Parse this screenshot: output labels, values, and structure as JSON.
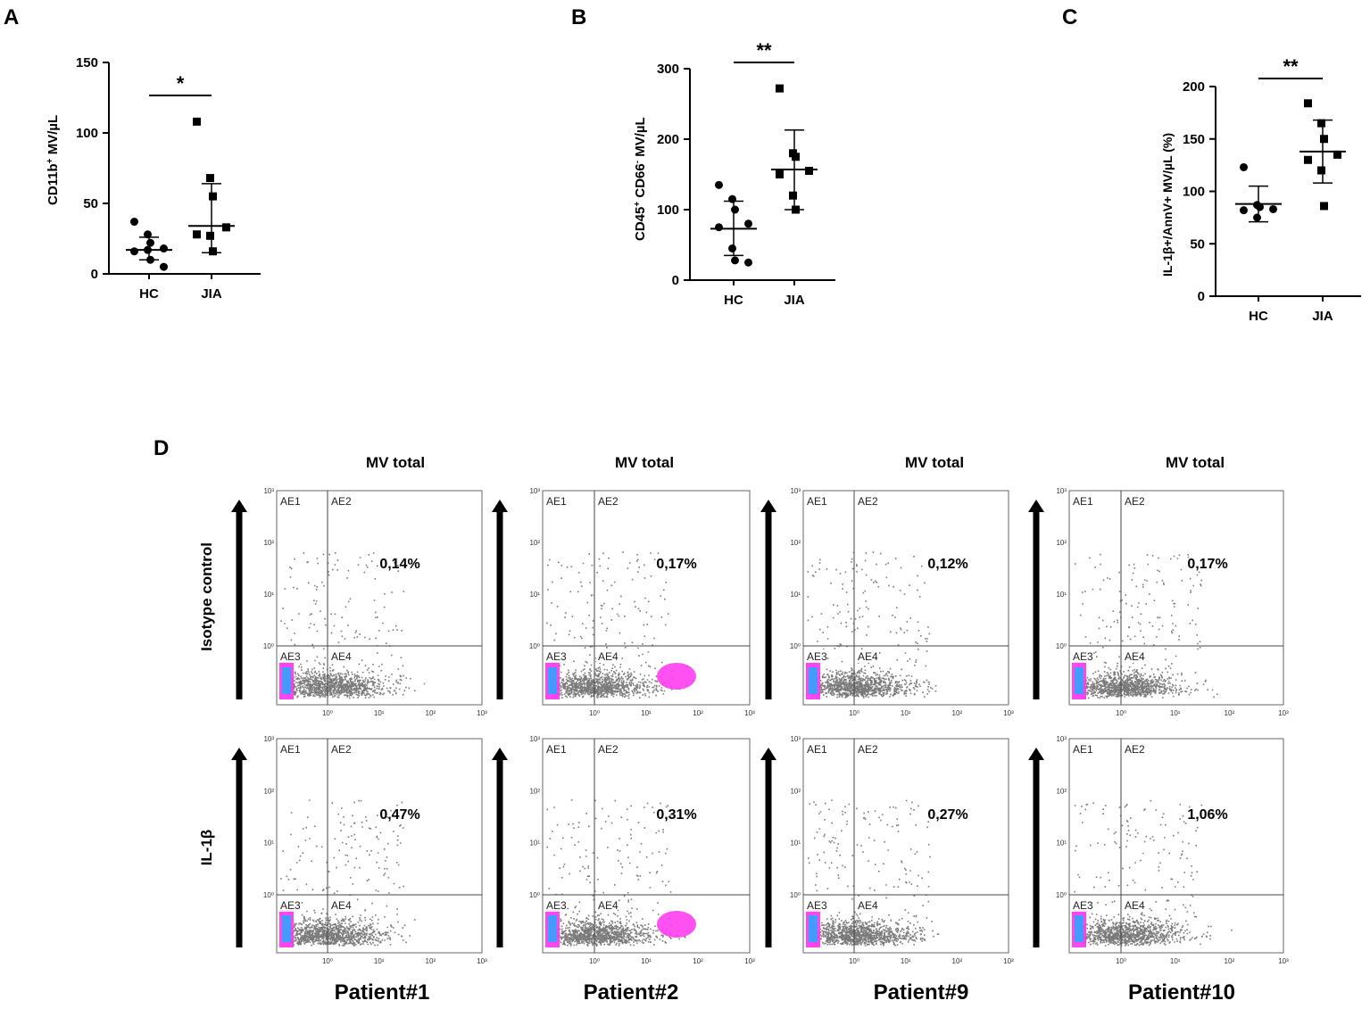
{
  "chart_data": [
    {
      "type": "scatter",
      "panel": "A",
      "ylabel_base": "CD11b",
      "ylabel_sup": "+",
      "ylabel_rest": " MV/µL",
      "categories": [
        "HC",
        "JIA"
      ],
      "ylim": [
        0,
        150
      ],
      "yticks": [
        0,
        50,
        100,
        150
      ],
      "significance": "*",
      "series": [
        {
          "name": "HC",
          "marker": "circle",
          "values": [
            37,
            28,
            22,
            18,
            16,
            17,
            10,
            5
          ],
          "mean": 17,
          "err_low": 10,
          "err_high": 26
        },
        {
          "name": "JIA",
          "marker": "square",
          "values": [
            108,
            68,
            55,
            33,
            28,
            27,
            16
          ],
          "mean": 34,
          "err_low": 15,
          "err_high": 64
        }
      ]
    },
    {
      "type": "scatter",
      "panel": "B",
      "ylabel_base": "CD45",
      "ylabel_sup": "+",
      "ylabel_mid": " CD66",
      "ylabel_sup2": "-",
      "ylabel_rest": " MV/µL",
      "categories": [
        "HC",
        "JIA"
      ],
      "ylim": [
        0,
        300
      ],
      "yticks": [
        0,
        100,
        200,
        300
      ],
      "significance": "**",
      "series": [
        {
          "name": "HC",
          "marker": "circle",
          "values": [
            135,
            115,
            100,
            80,
            75,
            45,
            28,
            25
          ],
          "mean": 73,
          "err_low": 35,
          "err_high": 112
        },
        {
          "name": "JIA",
          "marker": "square",
          "values": [
            272,
            180,
            175,
            155,
            150,
            120,
            100
          ],
          "mean": 157,
          "err_low": 100,
          "err_high": 213
        }
      ]
    },
    {
      "type": "scatter",
      "panel": "C",
      "ylabel": "IL-1β+/AnnV+ MV/µL (%)",
      "categories": [
        "HC",
        "JIA"
      ],
      "ylim": [
        0,
        200
      ],
      "yticks": [
        0,
        50,
        100,
        150,
        200
      ],
      "significance": "**",
      "series": [
        {
          "name": "HC",
          "marker": "circle",
          "values": [
            123,
            87,
            85,
            83,
            82,
            75
          ],
          "mean": 88,
          "err_low": 71,
          "err_high": 105
        },
        {
          "name": "JIA",
          "marker": "square",
          "values": [
            184,
            165,
            150,
            135,
            130,
            120,
            86
          ],
          "mean": 138,
          "err_low": 108,
          "err_high": 168
        }
      ]
    }
  ],
  "panel_labels": {
    "a": "A",
    "b": "B",
    "c": "C",
    "d": "D"
  },
  "flow": {
    "column_title": "MV total",
    "row_labels": [
      "Isotype control",
      "IL-1β"
    ],
    "patients": [
      "Patient#1",
      "Patient#2",
      "Patient#9",
      "Patient#10"
    ],
    "gates": [
      "AE1",
      "AE2",
      "AE3",
      "AE4"
    ],
    "axis_ticks_x": [
      "10⁰",
      "10¹",
      "10²",
      "10³"
    ],
    "axis_ticks_y": [
      "10⁰",
      "10¹",
      "10²",
      "10³"
    ],
    "percentages": {
      "isotype": [
        "0,14%",
        "0,17%",
        "0,12%",
        "0,17%"
      ],
      "il1b": [
        "0,47%",
        "0,31%",
        "0,27%",
        "1,06%"
      ]
    },
    "colors": {
      "events": "#7a7a7a",
      "dense": "#ff33ee",
      "lowcorner": "#22aaff"
    }
  }
}
